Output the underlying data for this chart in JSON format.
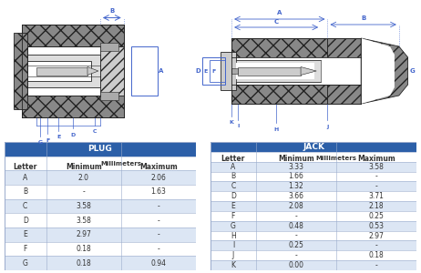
{
  "plug_title": "PLUG",
  "plug_subtitle": "Millimeters",
  "plug_headers": [
    "Letter",
    "Minimum",
    "Maximum"
  ],
  "plug_rows": [
    [
      "A",
      "2.0",
      "2.06"
    ],
    [
      "B",
      "-",
      "1.63"
    ],
    [
      "C",
      "3.58",
      "-"
    ],
    [
      "D",
      "3.58",
      "-"
    ],
    [
      "E",
      "2.97",
      "-"
    ],
    [
      "F",
      "0.18",
      "-"
    ],
    [
      "G",
      "0.18",
      "0.94"
    ]
  ],
  "jack_title": "JACK",
  "jack_subtitle": "Millimeters",
  "jack_headers": [
    "Letter",
    "Minimum",
    "Maximum"
  ],
  "jack_rows": [
    [
      "A",
      "3.33",
      "3.58"
    ],
    [
      "B",
      "1.66",
      "-"
    ],
    [
      "C",
      "1.32",
      "-"
    ],
    [
      "D",
      "3.66",
      "3.71"
    ],
    [
      "E",
      "2.08",
      "2.18"
    ],
    [
      "F",
      "-",
      "0.25"
    ],
    [
      "G",
      "0.48",
      "0.53"
    ],
    [
      "H",
      "-",
      "2.97"
    ],
    [
      "I",
      "0.25",
      "-"
    ],
    [
      "J",
      "-",
      "0.18"
    ],
    [
      "K",
      "0.00",
      "-"
    ]
  ],
  "header_bg": "#2c5fa8",
  "header_fg": "#ffffff",
  "subheader_fg": "#333333",
  "row_even_bg": "#dce6f4",
  "row_odd_bg": "#ffffff",
  "border_color": "#9aabcc",
  "table_font_size": 5.5,
  "header_font_size": 6.5,
  "bg_color": "#ffffff",
  "hatch_color": "#555555",
  "line_color": "#222222",
  "dim_color": "#4466cc"
}
